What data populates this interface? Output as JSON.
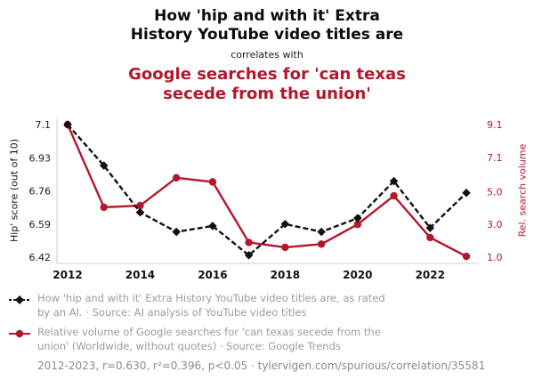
{
  "colors": {
    "accent_red": "#b2182b",
    "series_black": "#111111",
    "legend_gray": "#9b9b9b",
    "axis_line_gray": "#cccccc"
  },
  "header": {
    "title_black": "How 'hip and with it' Extra\nHistory YouTube video titles are",
    "connector": "correlates with",
    "title_red": "Google searches for 'can texas\nsecede from the union'"
  },
  "chart_data": {
    "type": "line",
    "x": [
      2012,
      2013,
      2014,
      2015,
      2016,
      2017,
      2018,
      2019,
      2020,
      2021,
      2022,
      2023
    ],
    "x_ticks": [
      2012,
      2014,
      2016,
      2018,
      2020,
      2022
    ],
    "left_axis": {
      "label": "Hip' score (out of 10)",
      "range": [
        6.42,
        7.1
      ],
      "ticks": [
        {
          "value": 6.42,
          "label": "6.42"
        },
        {
          "value": 6.59,
          "label": "6.59"
        },
        {
          "value": 6.76,
          "label": "6.76"
        },
        {
          "value": 6.93,
          "label": "6.93"
        },
        {
          "value": 7.1,
          "label": "7.1"
        }
      ]
    },
    "right_axis": {
      "label": "Rel. search volume",
      "range": [
        1.0,
        9.1
      ],
      "ticks": [
        {
          "value": 1.0,
          "label": "1.0"
        },
        {
          "value": 3.0,
          "label": "3.0"
        },
        {
          "value": 5.0,
          "label": "5.0"
        },
        {
          "value": 7.1,
          "label": "7.1"
        },
        {
          "value": 9.1,
          "label": "9.1"
        }
      ]
    },
    "series": [
      {
        "name": "hip-score",
        "label": "How 'hip and with it' Extra History YouTube video titles are, as rated by an AI.",
        "axis": "left",
        "color": "#111111",
        "style": "dashed",
        "marker": "diamond",
        "values": [
          7.1,
          6.89,
          6.65,
          6.55,
          6.58,
          6.43,
          6.59,
          6.55,
          6.62,
          6.81,
          6.57,
          6.75
        ]
      },
      {
        "name": "texas-secede-searches",
        "label": "Relative volume of Google searches for 'can texas secede from the union'",
        "axis": "right",
        "color": "#b2182b",
        "style": "solid",
        "marker": "circle",
        "values": [
          9.1,
          4.05,
          4.15,
          5.85,
          5.6,
          1.9,
          1.6,
          1.8,
          3.0,
          4.75,
          2.2,
          1.05
        ]
      }
    ]
  },
  "legend": {
    "items": [
      {
        "series": "hip-score",
        "text": "How 'hip and with it' Extra History YouTube video titles are, as rated\nby an AI. · Source: AI analysis of YouTube video titles"
      },
      {
        "series": "texas-secede-searches",
        "text": "Relative volume of Google searches for 'can texas secede from the\nunion' (Worldwide, without quotes) · Source: Google Trends"
      }
    ]
  },
  "footer": {
    "text": "2012-2023, r=0.630, r²=0.396, p<0.05 · tylervigen.com/spurious/correlation/35581"
  }
}
